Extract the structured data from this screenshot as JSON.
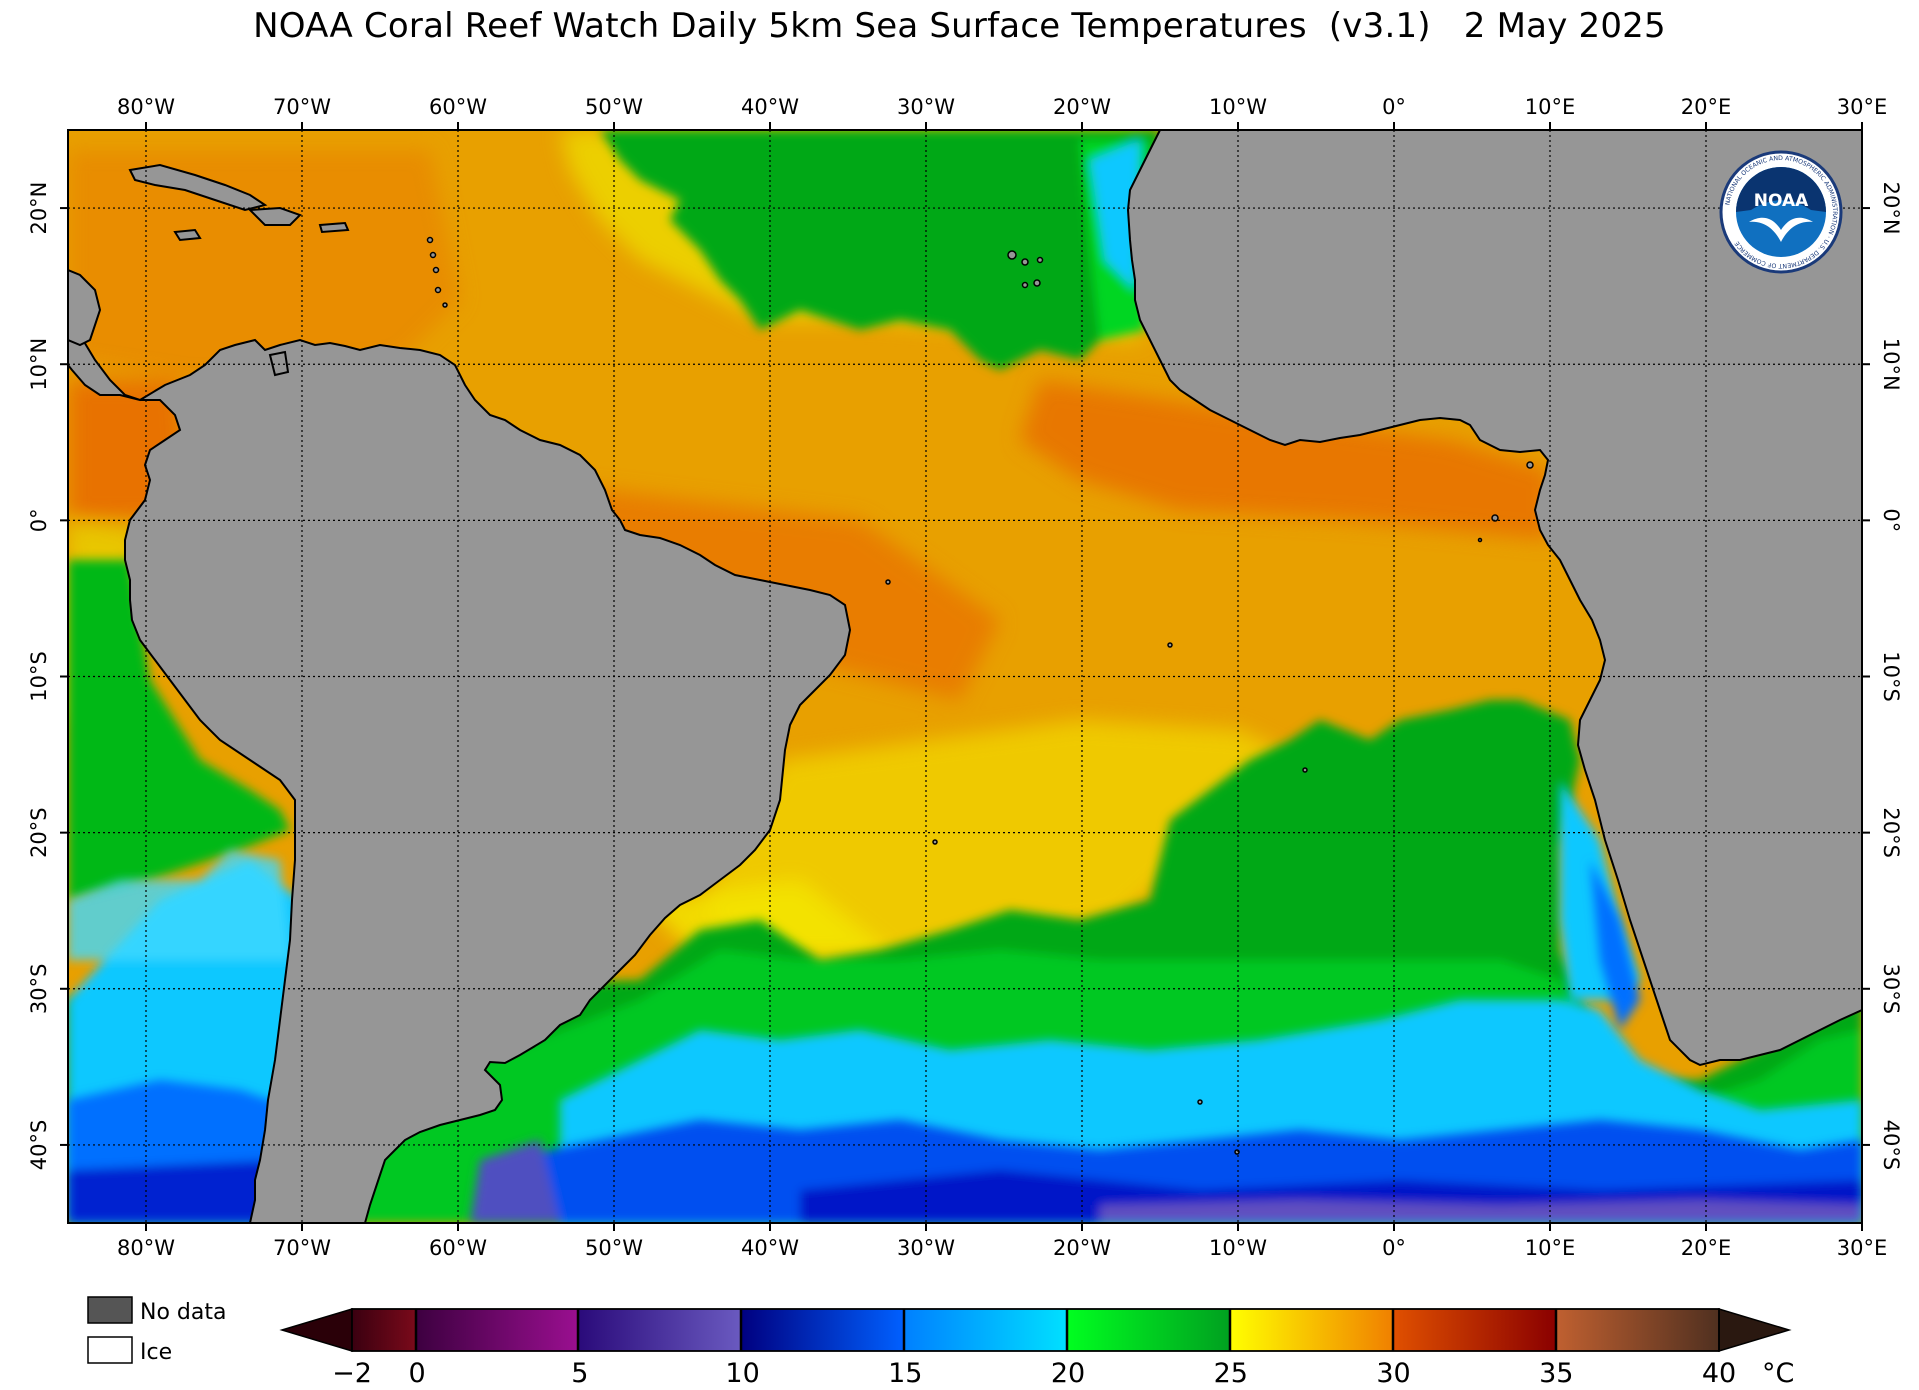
{
  "title": "NOAA Coral Reef Watch Daily 5km Sea Surface Temperatures  (v3.1)   2 May 2025",
  "map": {
    "lon_labels": [
      "80°W",
      "70°W",
      "60°W",
      "50°W",
      "40°W",
      "30°W",
      "20°W",
      "10°W",
      "0°",
      "10°E",
      "20°E",
      "30°E"
    ],
    "lat_labels": [
      "20°N",
      "10°N",
      "0°",
      "10°S",
      "20°S",
      "30°S",
      "40°S"
    ],
    "lon_range": [
      -85,
      30
    ],
    "lat_range": [
      -45,
      25
    ],
    "gridlines": true
  },
  "logo": {
    "text": "NOAA",
    "ring_text": "NATIONAL OCEANIC AND ATMOSPHERIC ADMINISTRATION · U.S. DEPARTMENT OF COMMERCE"
  },
  "legend": {
    "no_data": "No data",
    "ice": "Ice",
    "no_data_color": "#555555",
    "ice_color": "#ffffff"
  },
  "colorbar": {
    "ticks": [
      "−2",
      "0",
      "5",
      "10",
      "15",
      "20",
      "25",
      "30",
      "35",
      "40"
    ],
    "unit": "°C",
    "range": [
      -2,
      40
    ],
    "colors": {
      "-2_0": [
        "#3a0010",
        "#7a0a1a"
      ],
      "0_5": [
        "#3d0040",
        "#9a0f90"
      ],
      "5_10": [
        "#2a0a7a",
        "#6a5ac0"
      ],
      "10_15": [
        "#000080",
        "#0060ff"
      ],
      "15_20": [
        "#0080ff",
        "#00e0ff"
      ],
      "20_25": [
        "#00ff20",
        "#00a020"
      ],
      "25_30": [
        "#ffff00",
        "#f08000"
      ],
      "30_35": [
        "#e05000",
        "#8a0000"
      ],
      "35_40": [
        "#c06030",
        "#503020"
      ]
    }
  },
  "palette": {
    "land": "#969696",
    "sst_green_dark": "#00a818",
    "sst_green": "#00d820",
    "sst_yellow": "#e8ee00",
    "sst_orange": "#e89000",
    "sst_orange_deep": "#e86c00",
    "sst_cyan": "#10c8ff",
    "sst_blue": "#0070ff",
    "sst_deep_blue": "#0018c8",
    "sst_purple": "#6050c0"
  }
}
